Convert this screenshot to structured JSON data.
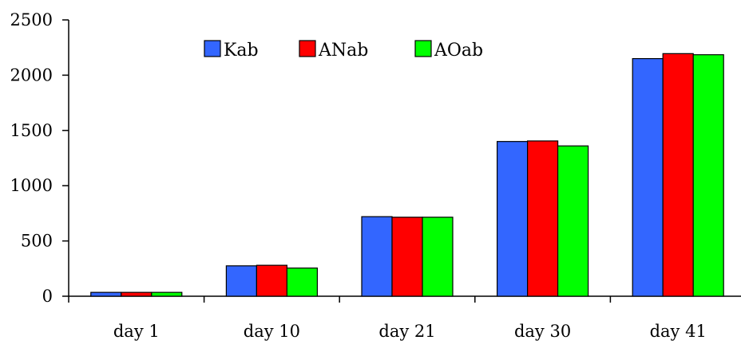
{
  "chart_data": {
    "type": "bar",
    "categories": [
      "day 1",
      "day 10",
      "day 21",
      "day 30",
      "day 41"
    ],
    "series": [
      {
        "name": "Kab",
        "color": "#3366ff",
        "values": [
          35,
          275,
          720,
          1400,
          2150
        ]
      },
      {
        "name": "ANab",
        "color": "#ff0000",
        "values": [
          35,
          280,
          715,
          1405,
          2195
        ]
      },
      {
        "name": "AOab",
        "color": "#00ff00",
        "values": [
          35,
          255,
          715,
          1360,
          2185
        ]
      }
    ],
    "title": "",
    "xlabel": "",
    "ylabel": "",
    "ylim": [
      0,
      2500
    ],
    "yticks": [
      0,
      500,
      1000,
      1500,
      2000,
      2500
    ],
    "grid": false,
    "legend_position": "top-center"
  }
}
